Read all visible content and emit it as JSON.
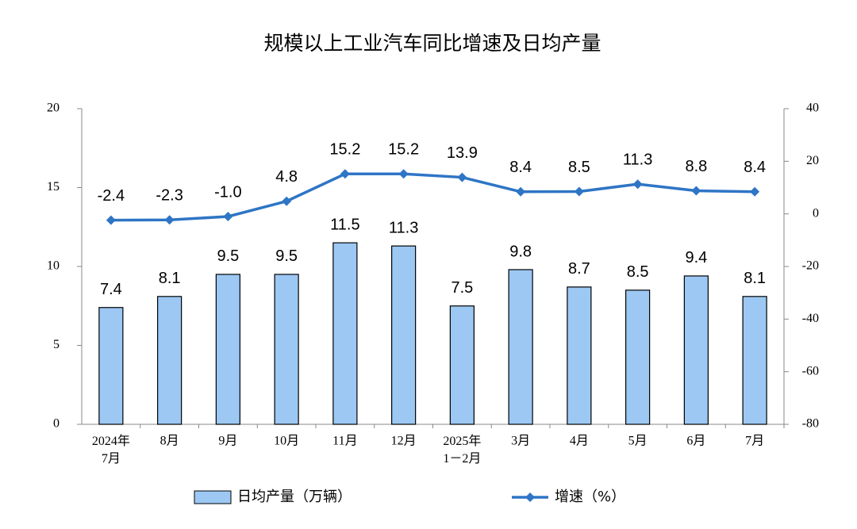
{
  "chart_data": {
    "type": "bar",
    "title": "规模以上工业汽车同比增速及日均产量",
    "categories": [
      [
        "2024年",
        "7月"
      ],
      "8月",
      "9月",
      "10月",
      "11月",
      "12月",
      [
        "2025年",
        "1－2月"
      ],
      "3月",
      "4月",
      "5月",
      "6月",
      "7月"
    ],
    "series": [
      {
        "name": "日均产量（万辆）",
        "type": "bar",
        "color": "#9cc8f3",
        "values": [
          7.4,
          8.1,
          9.5,
          9.5,
          11.5,
          11.3,
          7.5,
          9.8,
          8.7,
          8.5,
          9.4,
          8.1
        ]
      },
      {
        "name": "增速（%）",
        "type": "line",
        "axis": "y2",
        "color": "#2e75c5",
        "values": [
          -2.4,
          -2.3,
          -1.0,
          4.8,
          15.2,
          15.2,
          13.9,
          8.4,
          8.5,
          11.3,
          8.8,
          8.4
        ],
        "value_labels": [
          "-2.4",
          "-2.3",
          "-1.0",
          "4.8",
          "15.2",
          "15.2",
          "13.9",
          "8.4",
          "8.5",
          "11.3",
          "8.8",
          "8.4"
        ]
      }
    ],
    "ylim": [
      0,
      20
    ],
    "yticks": [
      0,
      5,
      10,
      15,
      20
    ],
    "y2lim": [
      -80,
      40
    ],
    "y2ticks": [
      -80,
      -60,
      -40,
      -20,
      0,
      20,
      40
    ],
    "grid": false,
    "legend": "bottom"
  }
}
